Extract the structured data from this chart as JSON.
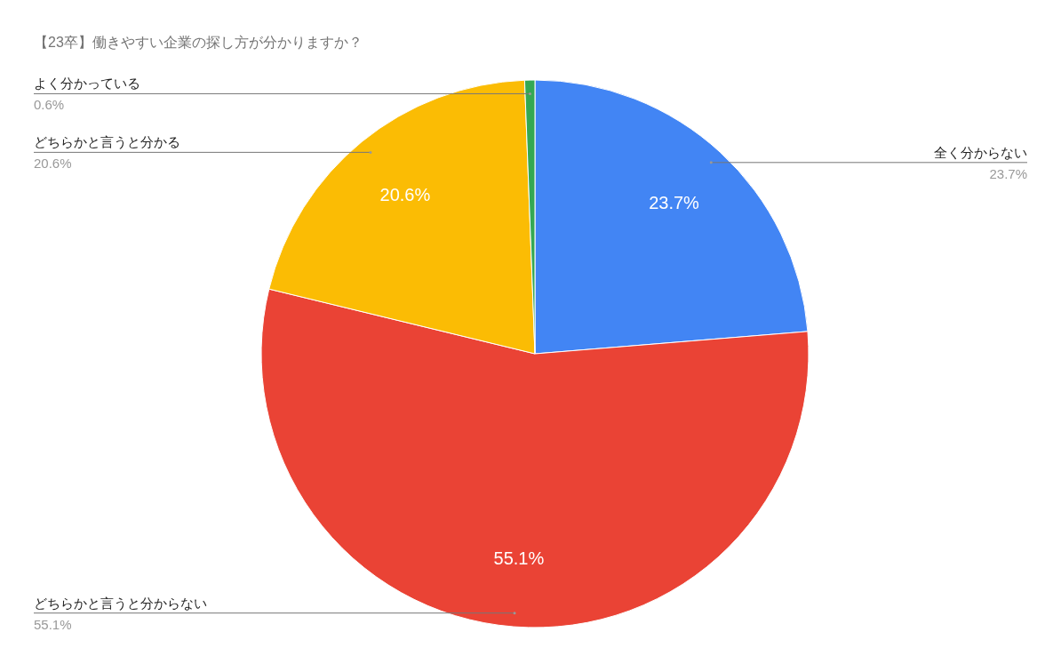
{
  "chart_data": {
    "type": "pie",
    "title": "【23卒】働きやすい企業の探し方が分かりますか？",
    "categories": [
      "全く分からない",
      "どちらかと言うと分からない",
      "どちらかと言うと分かる",
      "よく分かっている"
    ],
    "values": [
      23.7,
      55.1,
      20.6,
      0.6
    ],
    "value_labels": [
      "23.7%",
      "55.1%",
      "20.6%",
      "0.6%"
    ],
    "colors": [
      "#4285f4",
      "#ea4335",
      "#fbbc04",
      "#34a853"
    ]
  }
}
